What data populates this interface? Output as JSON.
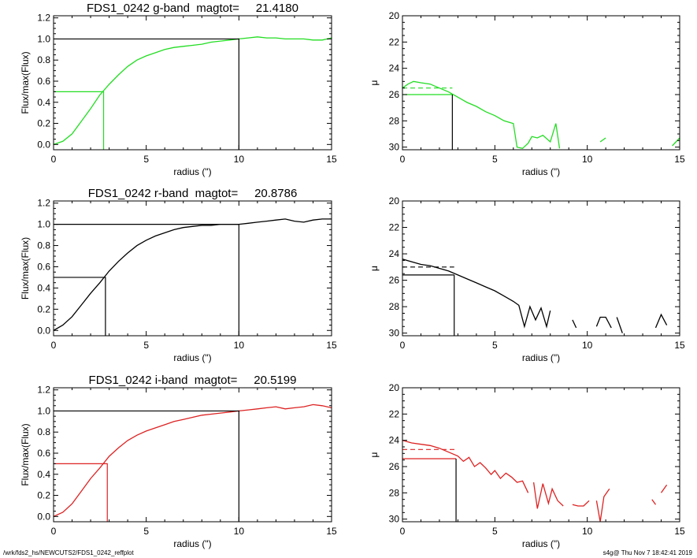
{
  "chart_data": [
    {
      "type": "line",
      "title": "FDS1_0242 g-band  magtot=     21.4180",
      "xlabel": "radius (\")",
      "ylabel": "Flux/max(Flux)",
      "xlim": [
        0,
        15
      ],
      "ylim": [
        -0.05,
        1.22
      ],
      "xticks": [
        "0",
        "5",
        "10",
        "15"
      ],
      "yticks": [
        "0.0",
        "0.2",
        "0.4",
        "0.6",
        "0.8",
        "1.0",
        "1.2"
      ],
      "color": "#22dd22",
      "series": [
        {
          "x": [
            0,
            0.5,
            1,
            1.5,
            2,
            2.5,
            3,
            3.5,
            4,
            4.5,
            5,
            5.5,
            6,
            6.5,
            7,
            7.5,
            8,
            8.5,
            9,
            9.5,
            10,
            10.5,
            11,
            11.5,
            12,
            12.5,
            13,
            13.5,
            14,
            14.5,
            15
          ],
          "y": [
            0.0,
            0.03,
            0.1,
            0.22,
            0.34,
            0.47,
            0.57,
            0.66,
            0.74,
            0.8,
            0.84,
            0.87,
            0.9,
            0.92,
            0.93,
            0.94,
            0.95,
            0.97,
            0.98,
            0.99,
            1.0,
            1.01,
            1.02,
            1.01,
            1.01,
            1.0,
            1.0,
            1.0,
            0.99,
            0.99,
            1.01
          ]
        }
      ],
      "half_light": {
        "x": 2.7,
        "y": 0.5
      },
      "total": {
        "x": 10,
        "y": 1.0
      }
    },
    {
      "type": "line",
      "xlabel": "radius (\")",
      "ylabel": "μ",
      "xlim": [
        0,
        15
      ],
      "ylim": [
        30.2,
        20
      ],
      "reversed_y": true,
      "xticks": [
        "0",
        "5",
        "10",
        "15"
      ],
      "yticks": [
        "20",
        "22",
        "24",
        "26",
        "28",
        "30"
      ],
      "color": "#22dd22",
      "series": [
        {
          "x": [
            0,
            0.3,
            0.6,
            1,
            1.5,
            2,
            2.5,
            3,
            3.5,
            4,
            4.5,
            5,
            5.5,
            6,
            6.2,
            6.5,
            6.8,
            7,
            7.3,
            7.6,
            8,
            8.3,
            8.5
          ],
          "y": [
            25.5,
            25.2,
            25.0,
            25.1,
            25.2,
            25.5,
            25.8,
            26.2,
            26.6,
            26.9,
            27.3,
            27.6,
            28.0,
            28.2,
            30.0,
            30.1,
            29.7,
            29.2,
            29.3,
            29.1,
            29.6,
            28.2,
            30.1
          ]
        },
        {
          "x": [
            10.7,
            11
          ],
          "y": [
            29.6,
            29.3
          ]
        },
        {
          "x": [
            14.6,
            15
          ],
          "y": [
            29.9,
            29.3
          ]
        }
      ],
      "dashed": {
        "y": 25.5,
        "x_end": 2.7
      },
      "mu_eff": {
        "x": 2.7,
        "y": 26.0
      }
    },
    {
      "type": "line",
      "title": "FDS1_0242 r-band  magtot=     20.8786",
      "xlabel": "radius (\")",
      "ylabel": "Flux/max(Flux)",
      "xlim": [
        0,
        15
      ],
      "ylim": [
        -0.05,
        1.22
      ],
      "xticks": [
        "0",
        "5",
        "10",
        "15"
      ],
      "yticks": [
        "0.0",
        "0.2",
        "0.4",
        "0.6",
        "0.8",
        "1.0",
        "1.2"
      ],
      "color": "#000000",
      "series": [
        {
          "x": [
            0,
            0.5,
            1,
            1.5,
            2,
            2.5,
            3,
            3.5,
            4,
            4.5,
            5,
            5.5,
            6,
            6.5,
            7,
            7.5,
            8,
            8.5,
            9,
            9.5,
            10,
            10.5,
            11,
            11.5,
            12,
            12.5,
            13,
            13.5,
            14,
            14.5,
            15
          ],
          "y": [
            0.0,
            0.05,
            0.13,
            0.24,
            0.35,
            0.45,
            0.56,
            0.65,
            0.73,
            0.8,
            0.85,
            0.89,
            0.92,
            0.95,
            0.97,
            0.98,
            0.99,
            0.99,
            1.0,
            1.0,
            1.0,
            1.01,
            1.02,
            1.03,
            1.04,
            1.05,
            1.03,
            1.02,
            1.04,
            1.05,
            1.05
          ]
        }
      ],
      "half_light": {
        "x": 2.8,
        "y": 0.5
      },
      "total": {
        "x": 10,
        "y": 1.0
      }
    },
    {
      "type": "line",
      "xlabel": "radius (\")",
      "ylabel": "μ",
      "xlim": [
        0,
        15
      ],
      "ylim": [
        30.2,
        20
      ],
      "reversed_y": true,
      "xticks": [
        "0",
        "5",
        "10",
        "15"
      ],
      "yticks": [
        "20",
        "22",
        "24",
        "26",
        "28",
        "30"
      ],
      "color": "#000000",
      "series": [
        {
          "x": [
            0,
            0.5,
            1,
            1.5,
            2,
            2.5,
            3,
            3.5,
            4,
            4.5,
            5,
            5.5,
            6,
            6.3,
            6.6,
            6.9,
            7.2,
            7.5,
            7.8,
            8
          ],
          "y": [
            24.4,
            24.6,
            24.8,
            24.9,
            25.1,
            25.3,
            25.6,
            25.9,
            26.2,
            26.5,
            26.8,
            27.2,
            27.6,
            27.9,
            29.5,
            28.0,
            29.0,
            28.1,
            29.5,
            28.3
          ]
        },
        {
          "x": [
            9.2,
            9.4
          ],
          "y": [
            29.0,
            29.6
          ]
        },
        {
          "x": [
            10.5,
            10.7,
            11,
            11.3
          ],
          "y": [
            29.5,
            28.8,
            28.8,
            29.6
          ]
        },
        {
          "x": [
            11.6,
            11.9
          ],
          "y": [
            28.8,
            30.0
          ]
        },
        {
          "x": [
            13.7,
            14,
            14.3
          ],
          "y": [
            29.6,
            28.6,
            29.4
          ]
        }
      ],
      "dashed": {
        "y": 25.0,
        "x_end": 2.8
      },
      "mu_eff": {
        "x": 2.8,
        "y": 25.6
      }
    },
    {
      "type": "line",
      "title": "FDS1_0242 i-band  magtot=     20.5199",
      "xlabel": "radius (\")",
      "ylabel": "Flux/max(Flux)",
      "xlim": [
        0,
        15
      ],
      "ylim": [
        -0.05,
        1.22
      ],
      "xticks": [
        "0",
        "5",
        "10",
        "15"
      ],
      "yticks": [
        "0.0",
        "0.2",
        "0.4",
        "0.6",
        "0.8",
        "1.0",
        "1.2"
      ],
      "color": "#dd2222",
      "series": [
        {
          "x": [
            0,
            0.5,
            1,
            1.5,
            2,
            2.5,
            3,
            3.5,
            4,
            4.5,
            5,
            5.5,
            6,
            6.5,
            7,
            7.5,
            8,
            8.5,
            9,
            9.5,
            10,
            10.5,
            11,
            11.5,
            12,
            12.5,
            13,
            13.5,
            14,
            14.5,
            15
          ],
          "y": [
            0.0,
            0.04,
            0.12,
            0.24,
            0.36,
            0.46,
            0.57,
            0.65,
            0.72,
            0.77,
            0.81,
            0.84,
            0.87,
            0.9,
            0.92,
            0.94,
            0.96,
            0.97,
            0.98,
            0.99,
            1.0,
            1.01,
            1.02,
            1.03,
            1.04,
            1.02,
            1.03,
            1.04,
            1.06,
            1.05,
            1.03
          ]
        }
      ],
      "half_light": {
        "x": 2.9,
        "y": 0.5
      },
      "total": {
        "x": 10,
        "y": 1.0
      }
    },
    {
      "type": "line",
      "xlabel": "radius (\")",
      "ylabel": "μ",
      "xlim": [
        0,
        15
      ],
      "ylim": [
        30.2,
        20
      ],
      "reversed_y": true,
      "xticks": [
        "0",
        "5",
        "10",
        "15"
      ],
      "yticks": [
        "20",
        "22",
        "24",
        "26",
        "28",
        "30"
      ],
      "color": "#dd2222",
      "series": [
        {
          "x": [
            0,
            0.5,
            1,
            1.5,
            2,
            2.5,
            3,
            3.3,
            3.6,
            3.9,
            4.2,
            4.5,
            4.8,
            5,
            5.3,
            5.6,
            5.9,
            6.2,
            6.5,
            6.8
          ],
          "y": [
            24.0,
            24.2,
            24.3,
            24.4,
            24.6,
            24.9,
            25.2,
            25.6,
            25.3,
            26.0,
            25.7,
            26.1,
            26.6,
            26.3,
            26.9,
            26.5,
            26.8,
            27.2,
            27.1,
            28.0
          ]
        },
        {
          "x": [
            7.1,
            7.3,
            7.6,
            7.9,
            8.1,
            8.4,
            8.7
          ],
          "y": [
            27.2,
            29.2,
            27.3,
            28.8,
            27.7,
            28.6,
            29.0
          ]
        },
        {
          "x": [
            9.2,
            9.5,
            9.8,
            10.1
          ],
          "y": [
            28.9,
            29.0,
            29.0,
            28.6
          ]
        },
        {
          "x": [
            10.5,
            10.7,
            10.9,
            11.2
          ],
          "y": [
            28.6,
            30.2,
            28.3,
            27.7
          ]
        },
        {
          "x": [
            13.5,
            13.7
          ],
          "y": [
            28.5,
            28.9
          ]
        },
        {
          "x": [
            14,
            14.3
          ],
          "y": [
            28.0,
            27.4
          ]
        }
      ],
      "dashed": {
        "y": 24.7,
        "x_end": 2.9
      },
      "mu_eff": {
        "x": 2.9,
        "y": 25.4
      }
    }
  ],
  "footer": {
    "path": "/wrk/fds2_hs/NEWCUTS2/FDS1_0242_reffplot",
    "stamp": "s4g@  Thu Nov  7 18:42:41 2019"
  }
}
